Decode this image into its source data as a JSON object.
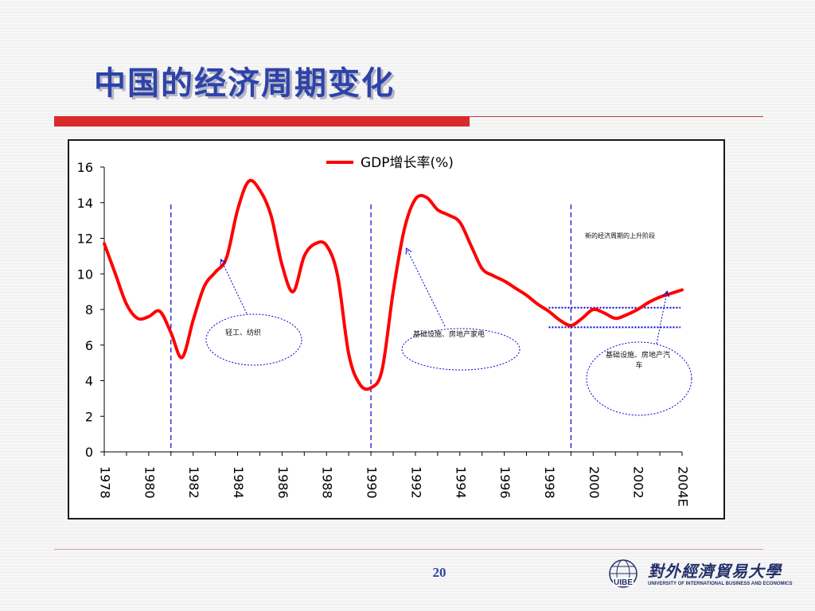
{
  "slide": {
    "title": "中国的经济周期变化",
    "page_number": "20"
  },
  "logo": {
    "mark_text": "UIBE",
    "cn_text": "對外經濟貿易大學",
    "en_text": "UNIVERSITY OF INTERNATIONAL BUSINESS AND ECONOMICS"
  },
  "colors": {
    "title": "#2d43a8",
    "accent_rule": "#d92b2b",
    "series_line": "#ff0000",
    "guide_lines": "#0000cc"
  },
  "chart_data": {
    "type": "line",
    "title": "",
    "xlabel": "",
    "ylabel": "",
    "ylim": [
      0,
      16
    ],
    "yticks": [
      "0",
      "2",
      "4",
      "6",
      "8",
      "10",
      "12",
      "14",
      "16"
    ],
    "xlim": [
      1978,
      2004
    ],
    "xtick_labels": [
      "1978",
      "1980",
      "1982",
      "1984",
      "1986",
      "1988",
      "1990",
      "1992",
      "1994",
      "1996",
      "1998",
      "2000",
      "2002",
      "2004E"
    ],
    "legend": {
      "position": "top-center",
      "entries": [
        "GDP增长率(%)"
      ]
    },
    "grid": false,
    "series": [
      {
        "name": "GDP增长率(%)",
        "x": [
          1978,
          1978.5,
          1979,
          1979.5,
          1980,
          1980.5,
          1981,
          1981.5,
          1982,
          1982.5,
          1983,
          1983.5,
          1984,
          1984.5,
          1985,
          1985.5,
          1986,
          1986.5,
          1987,
          1987.5,
          1988,
          1988.5,
          1989,
          1989.5,
          1990,
          1990.5,
          1991,
          1991.5,
          1992,
          1992.5,
          1993,
          1993.5,
          1994,
          1994.5,
          1995,
          1995.5,
          1996,
          1996.5,
          1997,
          1997.5,
          1998,
          1998.5,
          1999,
          1999.5,
          2000,
          2000.5,
          2001,
          2001.5,
          2002,
          2002.5,
          2003,
          2003.5,
          2004
        ],
        "values": [
          11.7,
          10.0,
          8.3,
          7.5,
          7.6,
          7.9,
          6.7,
          5.3,
          7.4,
          9.3,
          10.1,
          10.9,
          13.6,
          15.2,
          14.7,
          13.3,
          10.5,
          9.0,
          11.0,
          11.7,
          11.6,
          9.9,
          5.5,
          3.8,
          3.6,
          4.6,
          9.0,
          12.5,
          14.2,
          14.3,
          13.6,
          13.3,
          12.9,
          11.6,
          10.3,
          9.9,
          9.6,
          9.2,
          8.8,
          8.3,
          7.9,
          7.4,
          7.1,
          7.5,
          8.0,
          7.8,
          7.5,
          7.7,
          8.0,
          8.4,
          8.7,
          8.9,
          9.1
        ]
      }
    ],
    "vertical_markers_x": [
      1981,
      1990,
      1999
    ],
    "horizontal_band": {
      "x_range": [
        1998,
        2004
      ],
      "y_values": [
        8.1,
        7.0
      ]
    },
    "annotations": {
      "a1": {
        "text": "轻工、纺织"
      },
      "a2": {
        "text": "基础设施、房地产家电"
      },
      "a3": {
        "text": "基础设施、房地产汽车"
      },
      "a4": {
        "text": "新的经济周期的上升阶段"
      }
    }
  }
}
